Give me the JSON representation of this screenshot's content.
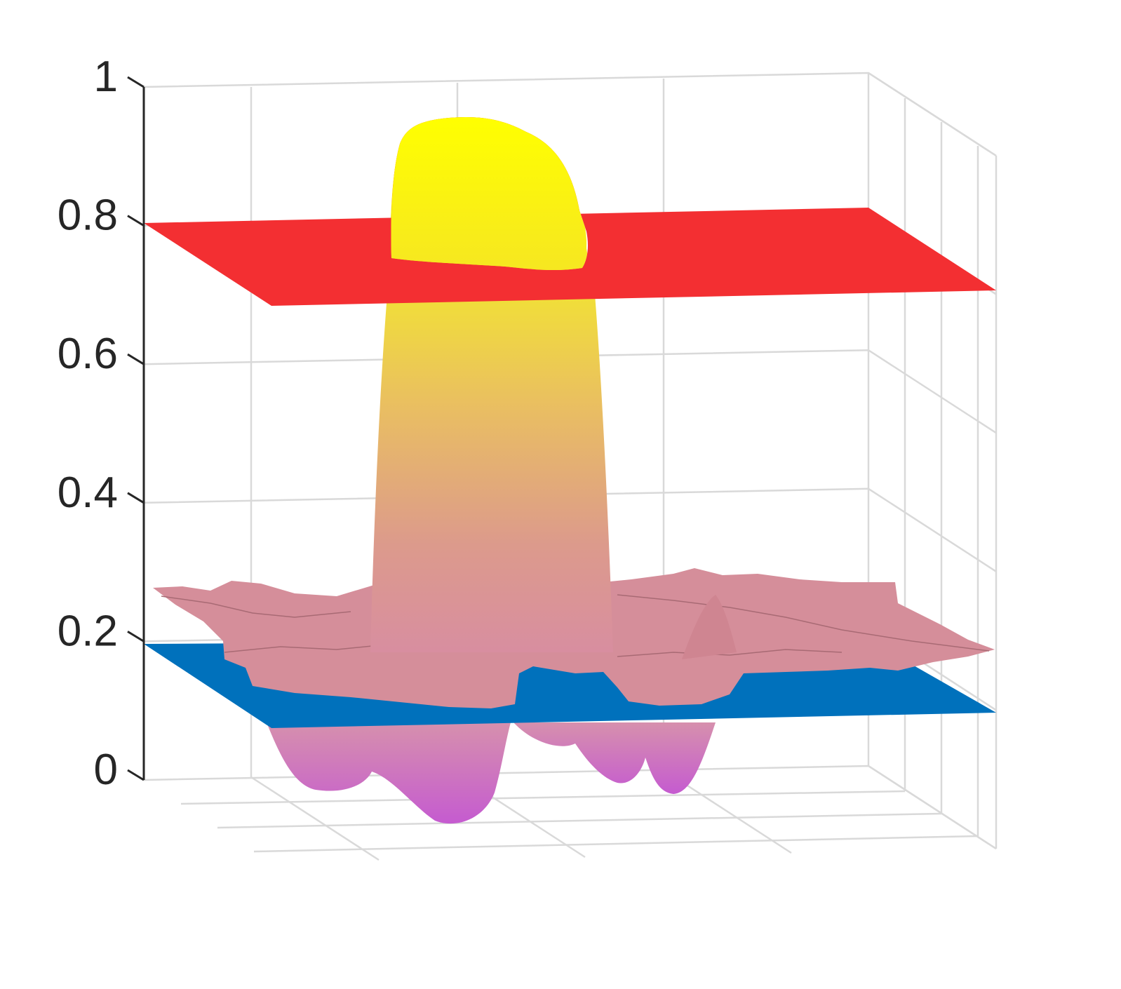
{
  "chart_data": {
    "type": "surface3d",
    "title": "",
    "xlabel": "",
    "ylabel": "",
    "zlabel": "",
    "zlim": [
      0,
      1
    ],
    "z_ticks": [
      0,
      0.2,
      0.4,
      0.6,
      0.8,
      1
    ],
    "z_tick_labels": [
      "0",
      "0.2",
      "0.4",
      "0.6",
      "0.8",
      "1"
    ],
    "grid": true,
    "planes": [
      {
        "level": 0.8,
        "color": "#f32f32"
      },
      {
        "level": 0.2,
        "color": "#0071bc"
      }
    ],
    "surface": {
      "colormap": [
        "#c75dd0",
        "#d98ea8",
        "#eec05e",
        "#ffff00"
      ],
      "peak_max": 0.95,
      "noise_floor": 0.25,
      "trough_min": -0.05
    }
  }
}
